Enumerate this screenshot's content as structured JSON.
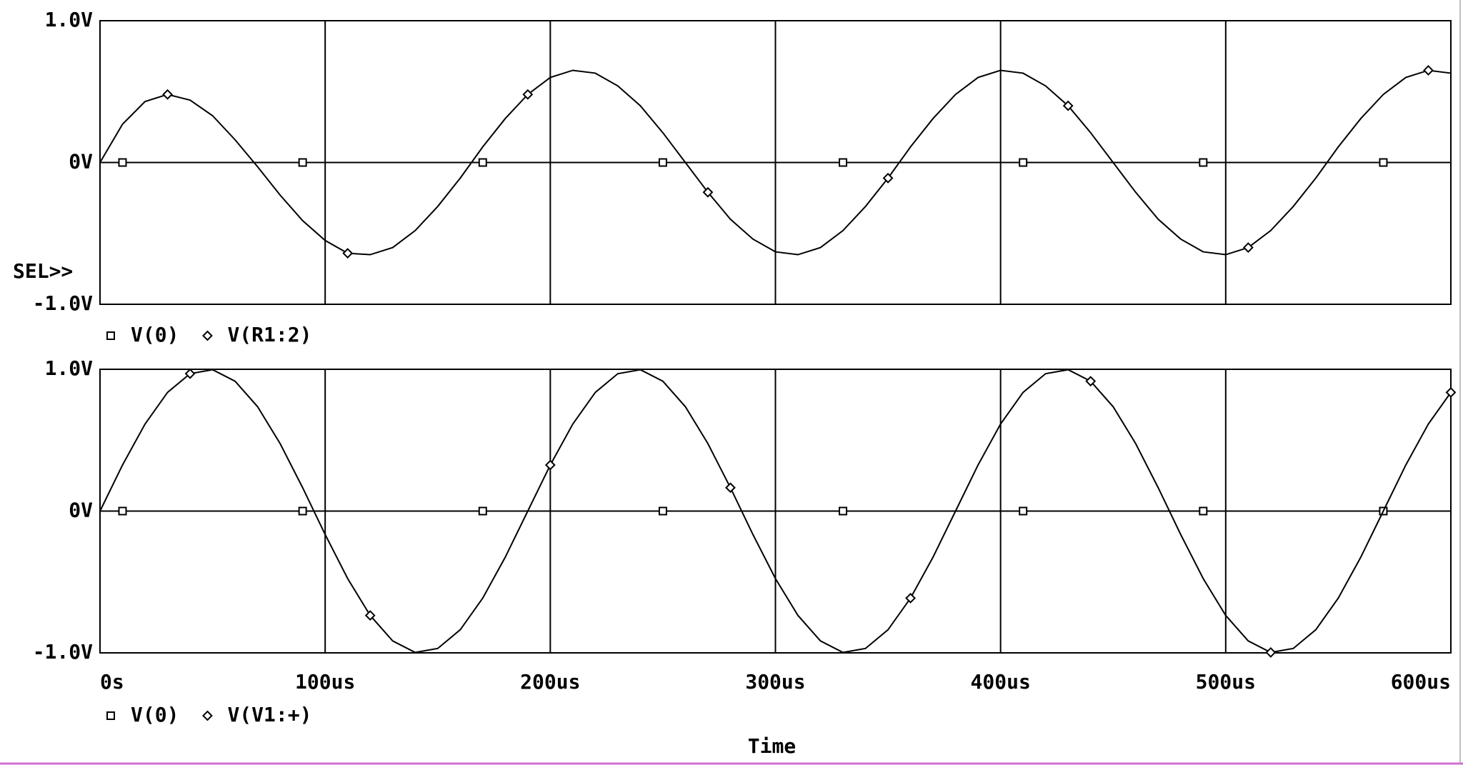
{
  "chart_data": [
    {
      "type": "line",
      "annotation": "SEL>>",
      "x": [
        0,
        10,
        20,
        30,
        40,
        50,
        60,
        70,
        80,
        90,
        100,
        110,
        120,
        130,
        140,
        150,
        160,
        170,
        180,
        190,
        200,
        210,
        220,
        230,
        240,
        250,
        260,
        270,
        280,
        290,
        300,
        310,
        320,
        330,
        340,
        350,
        360,
        370,
        380,
        390,
        400,
        410,
        420,
        430,
        440,
        450,
        460,
        470,
        480,
        490,
        500,
        510,
        520,
        530,
        540,
        550,
        560,
        570,
        580,
        590,
        600
      ],
      "xlim": [
        0,
        600
      ],
      "ylim": [
        -1,
        1
      ],
      "yticks": [
        {
          "value": 1,
          "label": "1.0V"
        },
        {
          "value": 0,
          "label": "0V"
        },
        {
          "value": -1,
          "label": "-1.0V"
        }
      ],
      "grid": true,
      "series": [
        {
          "name": "V(0)",
          "color": "#000000",
          "marker": "square",
          "values": [
            0,
            0,
            0,
            0,
            0,
            0,
            0,
            0,
            0,
            0,
            0,
            0,
            0,
            0,
            0,
            0,
            0,
            0,
            0,
            0,
            0,
            0,
            0,
            0,
            0,
            0,
            0,
            0,
            0,
            0,
            0,
            0,
            0,
            0,
            0,
            0,
            0,
            0,
            0,
            0,
            0,
            0,
            0,
            0,
            0,
            0,
            0,
            0,
            0,
            0,
            0,
            0,
            0,
            0,
            0,
            0,
            0,
            0,
            0,
            0,
            0
          ]
        },
        {
          "name": "V(R1:2)",
          "color": "#000000",
          "marker": "diamond",
          "values": [
            0,
            0.27,
            0.43,
            0.48,
            0.44,
            0.33,
            0.16,
            -0.03,
            -0.23,
            -0.41,
            -0.55,
            -0.64,
            -0.65,
            -0.6,
            -0.48,
            -0.31,
            -0.11,
            0.11,
            0.31,
            0.48,
            0.6,
            0.65,
            0.63,
            0.54,
            0.4,
            0.21,
            0,
            -0.21,
            -0.4,
            -0.54,
            -0.63,
            -0.65,
            -0.6,
            -0.48,
            -0.31,
            -0.11,
            0.11,
            0.31,
            0.48,
            0.6,
            0.65,
            0.63,
            0.54,
            0.4,
            0.21,
            0,
            -0.21,
            -0.4,
            -0.54,
            -0.63,
            -0.65,
            -0.6,
            -0.48,
            -0.31,
            -0.11,
            0.11,
            0.31,
            0.48,
            0.6,
            0.65,
            0.63
          ]
        }
      ]
    },
    {
      "type": "line",
      "xlabel": "Time",
      "x": [
        0,
        10,
        20,
        30,
        40,
        50,
        60,
        70,
        80,
        90,
        100,
        110,
        120,
        130,
        140,
        150,
        160,
        170,
        180,
        190,
        200,
        210,
        220,
        230,
        240,
        250,
        260,
        270,
        280,
        290,
        300,
        310,
        320,
        330,
        340,
        350,
        360,
        370,
        380,
        390,
        400,
        410,
        420,
        430,
        440,
        450,
        460,
        470,
        480,
        490,
        500,
        510,
        520,
        530,
        540,
        550,
        560,
        570,
        580,
        590,
        600
      ],
      "xlim": [
        0,
        600
      ],
      "xticks": [
        {
          "value": 0,
          "label": "0s"
        },
        {
          "value": 100,
          "label": "100us"
        },
        {
          "value": 200,
          "label": "200us"
        },
        {
          "value": 300,
          "label": "300us"
        },
        {
          "value": 400,
          "label": "400us"
        },
        {
          "value": 500,
          "label": "500us"
        },
        {
          "value": 600,
          "label": "600us"
        }
      ],
      "ylim": [
        -1,
        1
      ],
      "yticks": [
        {
          "value": 1,
          "label": "1.0V"
        },
        {
          "value": 0,
          "label": "0V"
        },
        {
          "value": -1,
          "label": "-1.0V"
        }
      ],
      "grid": true,
      "series": [
        {
          "name": "V(0)",
          "color": "#000000",
          "marker": "square",
          "values": [
            0,
            0,
            0,
            0,
            0,
            0,
            0,
            0,
            0,
            0,
            0,
            0,
            0,
            0,
            0,
            0,
            0,
            0,
            0,
            0,
            0,
            0,
            0,
            0,
            0,
            0,
            0,
            0,
            0,
            0,
            0,
            0,
            0,
            0,
            0,
            0,
            0,
            0,
            0,
            0,
            0,
            0,
            0,
            0,
            0,
            0,
            0,
            0,
            0,
            0,
            0,
            0,
            0,
            0,
            0,
            0,
            0,
            0,
            0,
            0,
            0
          ]
        },
        {
          "name": "V(V1:+)",
          "color": "#000000",
          "marker": "diamond",
          "values": [
            0,
            0.325,
            0.614,
            0.837,
            0.969,
            0.997,
            0.916,
            0.736,
            0.476,
            0.165,
            -0.165,
            -0.476,
            -0.736,
            -0.916,
            -0.997,
            -0.969,
            -0.837,
            -0.614,
            -0.325,
            0,
            0.325,
            0.614,
            0.837,
            0.969,
            0.997,
            0.916,
            0.736,
            0.476,
            0.165,
            -0.165,
            -0.476,
            -0.736,
            -0.916,
            -0.997,
            -0.969,
            -0.837,
            -0.614,
            -0.325,
            0,
            0.325,
            0.614,
            0.837,
            0.969,
            0.997,
            0.916,
            0.736,
            0.476,
            0.165,
            -0.165,
            -0.476,
            -0.736,
            -0.916,
            -0.997,
            -0.969,
            -0.837,
            -0.614,
            -0.325,
            0,
            0.325,
            0.614,
            0.837
          ]
        }
      ]
    }
  ]
}
